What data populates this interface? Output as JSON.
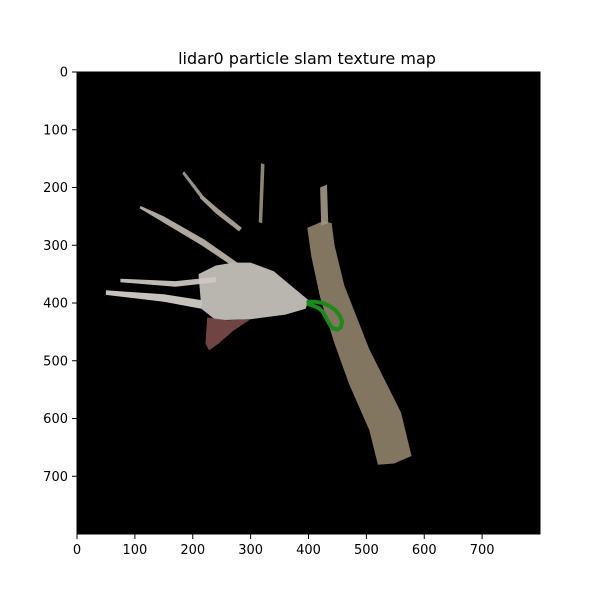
{
  "chart_data": {
    "type": "heatmap",
    "title": "lidar0 particle slam texture map",
    "xlabel": "",
    "ylabel": "",
    "xlim": [
      0,
      800
    ],
    "ylim": [
      800,
      0
    ],
    "xticks": [
      0,
      100,
      200,
      300,
      400,
      500,
      600,
      700
    ],
    "yticks": [
      0,
      100,
      200,
      300,
      400,
      500,
      600,
      700
    ],
    "background_color": "#000000",
    "trajectory_color": "#1a8a1a",
    "layers": [
      {
        "name": "corridor-floor",
        "color": "#8e8068",
        "polygon": [
          [
            398,
            270
          ],
          [
            426,
            258
          ],
          [
            440,
            262
          ],
          [
            445,
            300
          ],
          [
            462,
            370
          ],
          [
            505,
            480
          ],
          [
            560,
            590
          ],
          [
            578,
            665
          ],
          [
            548,
            678
          ],
          [
            520,
            680
          ],
          [
            505,
            620
          ],
          [
            470,
            540
          ],
          [
            445,
            470
          ],
          [
            420,
            390
          ],
          [
            405,
            320
          ]
        ]
      },
      {
        "name": "upper-beam",
        "color": "#a09484",
        "polygon": [
          [
            420,
            200
          ],
          [
            432,
            195
          ],
          [
            434,
            262
          ],
          [
            422,
            266
          ]
        ]
      },
      {
        "name": "central-open-area",
        "color": "#c8c5be",
        "polygon": [
          [
            210,
            350
          ],
          [
            240,
            335
          ],
          [
            270,
            330
          ],
          [
            300,
            330
          ],
          [
            340,
            345
          ],
          [
            370,
            370
          ],
          [
            400,
            395
          ],
          [
            395,
            410
          ],
          [
            360,
            420
          ],
          [
            300,
            428
          ],
          [
            240,
            430
          ],
          [
            215,
            410
          ]
        ]
      },
      {
        "name": "left-beam-lower",
        "color": "#d8d4cc",
        "polygon": [
          [
            50,
            378
          ],
          [
            150,
            385
          ],
          [
            215,
            395
          ],
          [
            215,
            410
          ],
          [
            150,
            398
          ],
          [
            50,
            386
          ]
        ]
      },
      {
        "name": "left-beam-upper",
        "color": "#cfcac2",
        "polygon": [
          [
            75,
            358
          ],
          [
            170,
            362
          ],
          [
            240,
            355
          ],
          [
            240,
            364
          ],
          [
            170,
            372
          ],
          [
            75,
            364
          ]
        ]
      },
      {
        "name": "diagonal-beam-1",
        "color": "#bdb6ac",
        "polygon": [
          [
            110,
            232
          ],
          [
            150,
            250
          ],
          [
            220,
            290
          ],
          [
            280,
            332
          ],
          [
            272,
            338
          ],
          [
            215,
            300
          ],
          [
            145,
            258
          ],
          [
            108,
            236
          ]
        ]
      },
      {
        "name": "diagonal-beam-2",
        "color": "#b0a89c",
        "polygon": [
          [
            215,
            212
          ],
          [
            245,
            238
          ],
          [
            285,
            270
          ],
          [
            280,
            276
          ],
          [
            240,
            245
          ],
          [
            212,
            218
          ]
        ]
      },
      {
        "name": "diagonal-beam-3",
        "color": "#a59d92",
        "polygon": [
          [
            185,
            172
          ],
          [
            215,
            210
          ],
          [
            220,
            218
          ],
          [
            212,
            216
          ],
          [
            182,
            176
          ]
        ]
      },
      {
        "name": "vertical-spike",
        "color": "#9a8f80",
        "polygon": [
          [
            318,
            158
          ],
          [
            324,
            160
          ],
          [
            320,
            262
          ],
          [
            314,
            260
          ]
        ]
      },
      {
        "name": "lower-dark-patch",
        "color": "#7a4a48",
        "polygon": [
          [
            225,
            425
          ],
          [
            260,
            430
          ],
          [
            300,
            428
          ],
          [
            270,
            448
          ],
          [
            245,
            470
          ],
          [
            228,
            482
          ],
          [
            222,
            470
          ]
        ]
      }
    ],
    "trajectory": [
      [
        400,
        398
      ],
      [
        412,
        398
      ],
      [
        425,
        400
      ],
      [
        436,
        405
      ],
      [
        446,
        412
      ],
      [
        454,
        422
      ],
      [
        458,
        432
      ],
      [
        456,
        442
      ],
      [
        450,
        446
      ],
      [
        442,
        444
      ],
      [
        436,
        436
      ],
      [
        430,
        425
      ],
      [
        424,
        414
      ],
      [
        416,
        408
      ],
      [
        406,
        404
      ],
      [
        400,
        402
      ]
    ]
  }
}
